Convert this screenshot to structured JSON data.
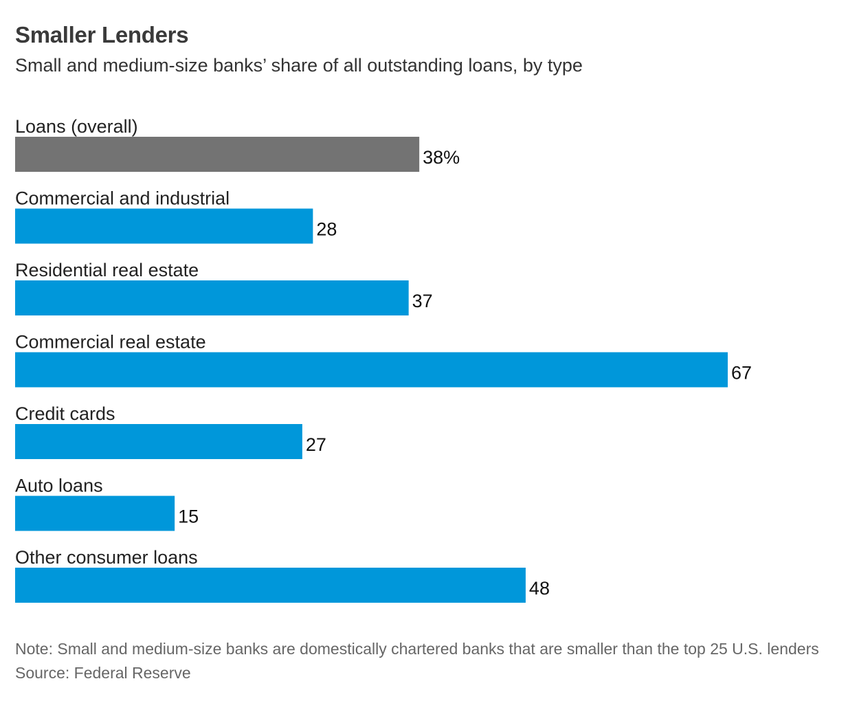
{
  "title": "Smaller Lenders",
  "subtitle": "Small and medium-size banks’ share of all outstanding loans, by type",
  "note": "Note: Small and medium-size banks are domestically chartered banks that are smaller than the top 25 U.S. lenders",
  "source": "Source: Federal Reserve",
  "colors": {
    "overall": "#737373",
    "category": "#0097da"
  },
  "chart_data": {
    "type": "bar",
    "orientation": "horizontal",
    "unit": "%",
    "categories": [
      "Loans (overall)",
      "Commercial and industrial",
      "Residential real estate",
      "Commercial real estate",
      "Credit cards",
      "Auto loans",
      "Other consumer loans"
    ],
    "values": [
      38,
      28,
      37,
      67,
      27,
      15,
      48
    ],
    "value_labels": [
      "38%",
      "28",
      "37",
      "67",
      "27",
      "15",
      "48"
    ],
    "highlight": [
      true,
      false,
      false,
      false,
      false,
      false,
      false
    ],
    "xlim": [
      0,
      67
    ],
    "grid": false,
    "legend": "none"
  }
}
